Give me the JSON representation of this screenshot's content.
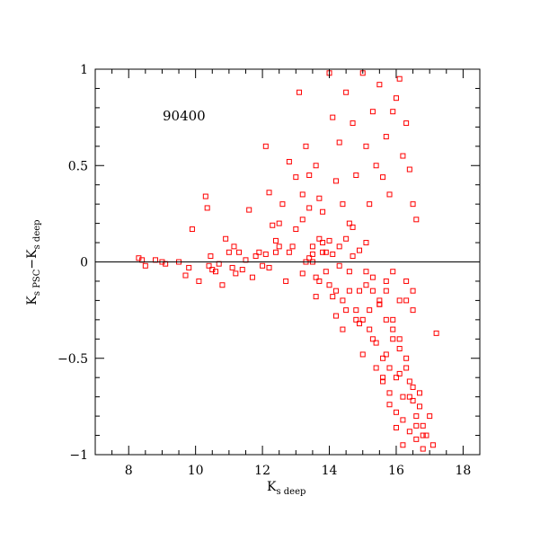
{
  "chart_data": {
    "type": "scatter",
    "annotation": "90400",
    "xlabel": {
      "main": "K",
      "sub": "s deep"
    },
    "ylabel": {
      "main1": "K",
      "sub1": "s PSC",
      "dash": "−K",
      "sub2": "s deep"
    },
    "xlim": [
      7,
      18.5
    ],
    "ylim": [
      -1,
      1
    ],
    "xticks": [
      8,
      10,
      12,
      14,
      16,
      18
    ],
    "xtick_labels": [
      "8",
      "10",
      "12",
      "14",
      "16",
      "18"
    ],
    "yticks": [
      -1,
      -0.5,
      0,
      0.5,
      1
    ],
    "ytick_labels": [
      "−1",
      "−0.5",
      "0",
      "0.5",
      "1"
    ],
    "reference_line_y": 0,
    "marker": "open-square",
    "color": "#ff0000",
    "series": [
      {
        "x": [
          8.3,
          8.4,
          8.5,
          8.8,
          9.0,
          9.1,
          9.5,
          9.7,
          9.8,
          9.9,
          10.1,
          10.3,
          10.35,
          10.4,
          10.45,
          10.5,
          10.6,
          10.7,
          10.8,
          10.9,
          11.0,
          11.1,
          11.15,
          11.2,
          11.3,
          11.4,
          11.5,
          11.6,
          11.7,
          11.8,
          11.9,
          12.0,
          12.1,
          12.2,
          12.3,
          12.4,
          12.5,
          12.6,
          12.7,
          12.8,
          12.9,
          13.0,
          13.1,
          13.2,
          13.3,
          13.4,
          13.5,
          13.6,
          13.7,
          13.8,
          13.9,
          14.0,
          12.1,
          12.2,
          12.4,
          12.5,
          12.8,
          13.0,
          13.2,
          13.3,
          13.4,
          13.5,
          13.6,
          13.7,
          13.8,
          14.0,
          14.1,
          14.2,
          14.3,
          14.4,
          14.5,
          14.6,
          14.7,
          14.8,
          14.9,
          15.0,
          15.1,
          15.2,
          15.3,
          15.4,
          15.5,
          15.6,
          15.7,
          15.8,
          15.9,
          16.0,
          16.1,
          16.2,
          16.3,
          16.4,
          16.5,
          16.6
        ],
        "y": [
          0.02,
          0.01,
          -0.02,
          0.01,
          0.0,
          -0.01,
          0.0,
          -0.07,
          -0.03,
          0.17,
          -0.1,
          0.34,
          0.28,
          -0.02,
          0.03,
          -0.04,
          -0.05,
          -0.01,
          -0.12,
          0.12,
          0.05,
          -0.03,
          0.08,
          -0.06,
          0.05,
          -0.04,
          0.01,
          0.27,
          -0.08,
          0.03,
          0.05,
          -0.02,
          0.6,
          0.36,
          0.19,
          0.11,
          0.2,
          0.3,
          -0.1,
          0.05,
          0.08,
          0.17,
          0.88,
          0.22,
          0.0,
          0.45,
          0.04,
          -0.18,
          0.33,
          0.26,
          -0.05,
          0.11,
          0.04,
          -0.03,
          0.05,
          0.08,
          0.52,
          0.44,
          0.35,
          0.6,
          0.28,
          0.08,
          0.5,
          0.12,
          0.05,
          0.98,
          0.75,
          0.42,
          0.62,
          0.3,
          0.88,
          0.2,
          0.72,
          0.45,
          -0.15,
          0.98,
          0.6,
          0.3,
          0.78,
          0.5,
          0.92,
          0.44,
          0.65,
          0.35,
          0.78,
          0.85,
          0.95,
          0.55,
          0.72,
          0.48,
          0.3,
          0.22
        ]
      },
      {
        "x": [
          13.2,
          13.4,
          13.6,
          13.8,
          14.0,
          14.1,
          14.2,
          14.3,
          14.4,
          14.5,
          14.6,
          14.7,
          14.8,
          14.9,
          15.0,
          15.1,
          15.2,
          15.3,
          15.4,
          15.5,
          15.6,
          15.7,
          15.8,
          15.9,
          16.0,
          16.1,
          16.2,
          16.3,
          16.4,
          16.5,
          16.6,
          16.7,
          16.8,
          16.9,
          17.0,
          17.1,
          17.2,
          13.5,
          13.7,
          13.9,
          14.1,
          14.3,
          14.5,
          14.7,
          14.9,
          15.1,
          15.3,
          15.5,
          15.7,
          15.9,
          16.1,
          16.3,
          16.5,
          16.7,
          14.2,
          14.4,
          14.6,
          14.8,
          15.0,
          15.2,
          15.4,
          15.6,
          15.8,
          16.0,
          16.2,
          16.4,
          16.6,
          16.8,
          15.1,
          15.3,
          15.5,
          15.7,
          15.9,
          16.1,
          16.3,
          16.5,
          15.6,
          15.8,
          16.0,
          16.2,
          16.4,
          16.6,
          16.8,
          15.7,
          15.9,
          16.1,
          16.3,
          16.5
        ],
        "y": [
          -0.06,
          0.02,
          -0.08,
          0.1,
          -0.12,
          0.04,
          -0.15,
          0.08,
          -0.2,
          0.12,
          -0.05,
          0.18,
          -0.25,
          0.06,
          -0.3,
          0.1,
          -0.35,
          -0.08,
          -0.42,
          -0.2,
          -0.5,
          -0.3,
          -0.55,
          -0.4,
          -0.6,
          -0.45,
          -0.7,
          -0.55,
          -0.62,
          -0.72,
          -0.8,
          -0.68,
          -0.85,
          -0.9,
          -0.8,
          -0.95,
          -0.37,
          0.0,
          -0.1,
          0.05,
          -0.18,
          -0.02,
          -0.25,
          0.03,
          -0.32,
          -0.12,
          -0.4,
          -0.22,
          -0.48,
          -0.35,
          -0.58,
          -0.5,
          -0.65,
          -0.75,
          -0.28,
          -0.35,
          -0.15,
          -0.3,
          -0.48,
          -0.25,
          -0.55,
          -0.6,
          -0.68,
          -0.78,
          -0.82,
          -0.88,
          -0.92,
          -0.97,
          -0.05,
          -0.15,
          -0.22,
          -0.1,
          -0.3,
          -0.4,
          -0.2,
          -0.25,
          -0.62,
          -0.74,
          -0.86,
          -0.95,
          -0.7,
          -0.85,
          -0.9,
          -0.15,
          -0.05,
          -0.2,
          -0.1,
          -0.15
        ]
      }
    ]
  }
}
